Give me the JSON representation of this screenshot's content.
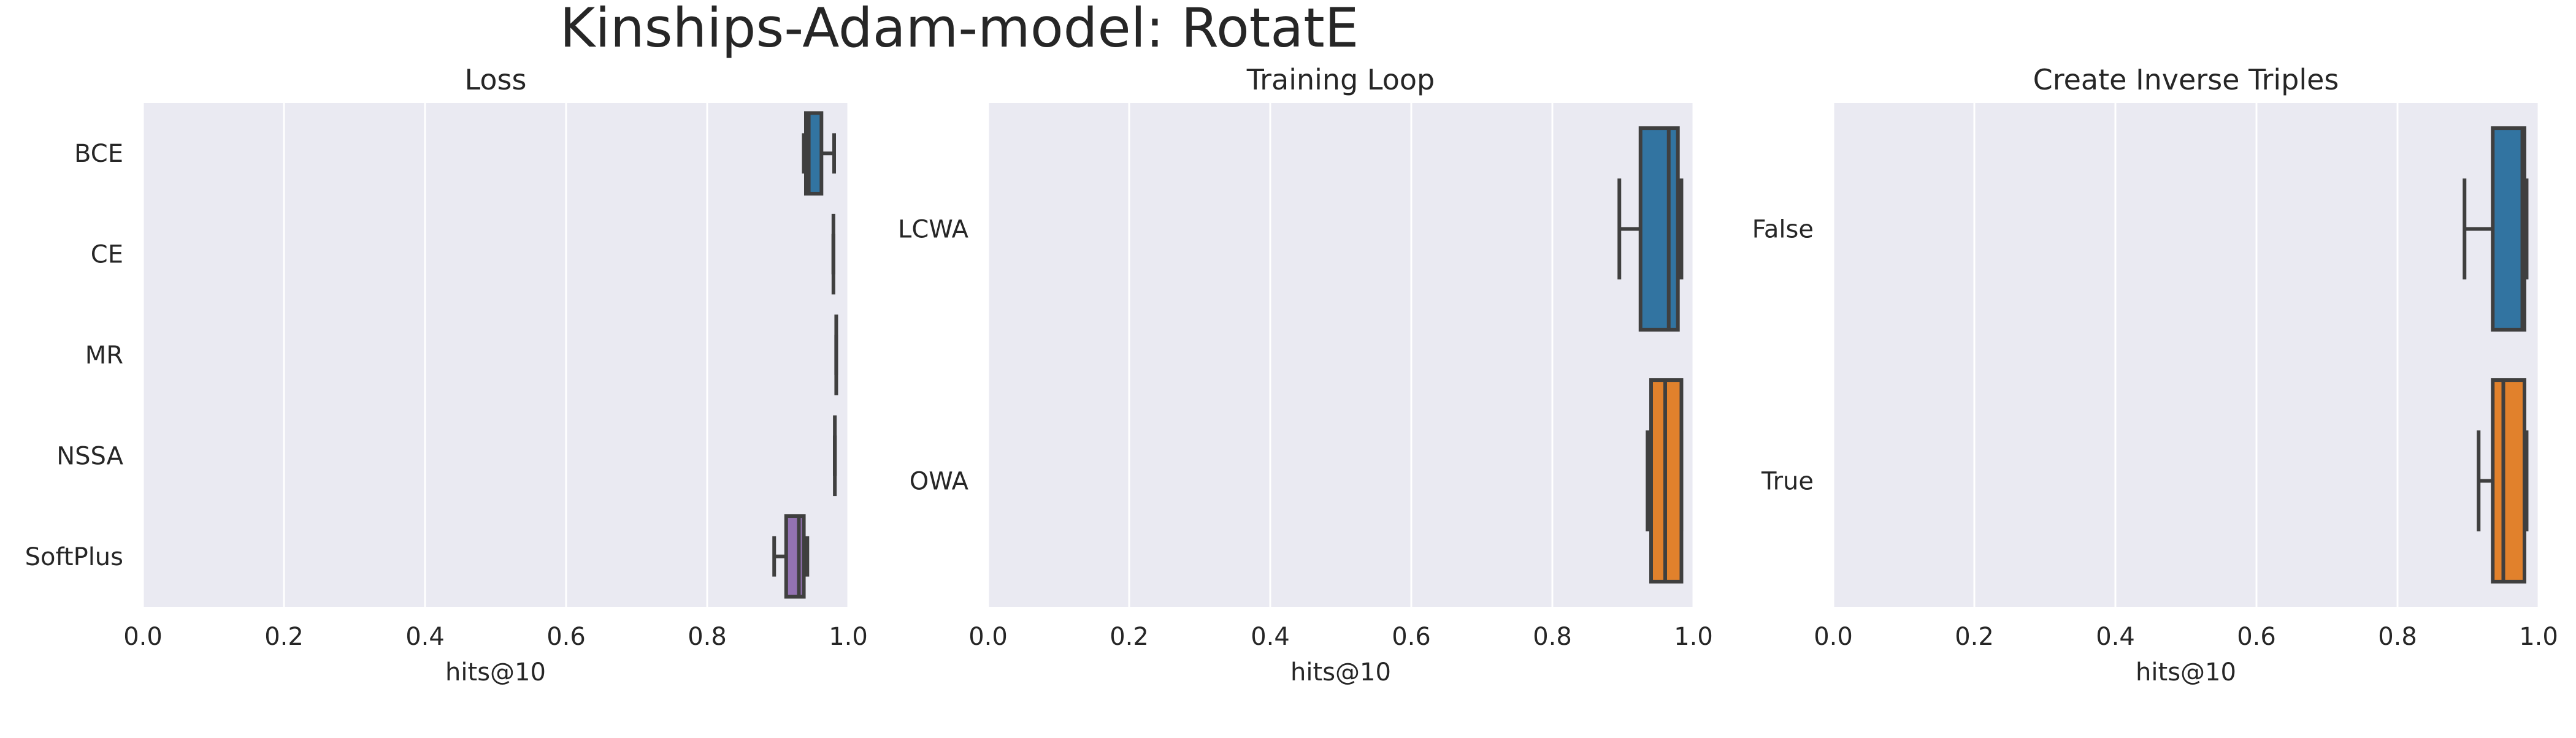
{
  "suptitle": "Kinships-Adam-model: RotatE",
  "chart_data": [
    {
      "type": "boxplot",
      "orientation": "horizontal",
      "title": "Loss",
      "xlabel": "hits@10",
      "ylabel": "",
      "xlim": [
        0.0,
        1.0
      ],
      "xticks": [
        "0.0",
        "0.2",
        "0.4",
        "0.6",
        "0.8",
        "1.0"
      ],
      "grid": true,
      "categories": [
        "BCE",
        "CE",
        "MR",
        "NSSA",
        "SoftPlus"
      ],
      "colors": [
        "#3274a1",
        "#e1812c",
        "#3a923a",
        "#c03d3e",
        "#9372b2"
      ],
      "boxes": [
        {
          "whislo": 0.937,
          "q1": 0.94,
          "med": 0.944,
          "q3": 0.962,
          "whishi": 0.98
        },
        {
          "whislo": 0.979,
          "q1": 0.979,
          "med": 0.979,
          "q3": 0.979,
          "whishi": 0.979
        },
        {
          "whislo": 0.983,
          "q1": 0.983,
          "med": 0.983,
          "q3": 0.983,
          "whishi": 0.983
        },
        {
          "whislo": 0.981,
          "q1": 0.981,
          "med": 0.981,
          "q3": 0.981,
          "whishi": 0.981
        },
        {
          "whislo": 0.895,
          "q1": 0.912,
          "med": 0.93,
          "q3": 0.937,
          "whishi": 0.942
        }
      ]
    },
    {
      "type": "boxplot",
      "orientation": "horizontal",
      "title": "Training Loop",
      "xlabel": "hits@10",
      "ylabel": "",
      "xlim": [
        0.0,
        1.0
      ],
      "xticks": [
        "0.0",
        "0.2",
        "0.4",
        "0.6",
        "0.8",
        "1.0"
      ],
      "grid": true,
      "categories": [
        "LCWA",
        "OWA"
      ],
      "colors": [
        "#3274a1",
        "#e1812c"
      ],
      "boxes": [
        {
          "whislo": 0.895,
          "q1": 0.925,
          "med": 0.965,
          "q3": 0.978,
          "whishi": 0.983
        },
        {
          "whislo": 0.935,
          "q1": 0.94,
          "med": 0.96,
          "q3": 0.983,
          "whishi": 0.983
        }
      ]
    },
    {
      "type": "boxplot",
      "orientation": "horizontal",
      "title": "Create Inverse Triples",
      "xlabel": "hits@10",
      "ylabel": "",
      "xlim": [
        0.0,
        1.0
      ],
      "xticks": [
        "0.0",
        "0.2",
        "0.4",
        "0.6",
        "0.8",
        "1.0"
      ],
      "grid": true,
      "categories": [
        "False",
        "True"
      ],
      "colors": [
        "#3274a1",
        "#e1812c"
      ],
      "boxes": [
        {
          "whislo": 0.895,
          "q1": 0.935,
          "med": 0.977,
          "q3": 0.98,
          "whishi": 0.983
        },
        {
          "whislo": 0.915,
          "q1": 0.935,
          "med": 0.95,
          "q3": 0.98,
          "whishi": 0.983
        }
      ]
    }
  ]
}
